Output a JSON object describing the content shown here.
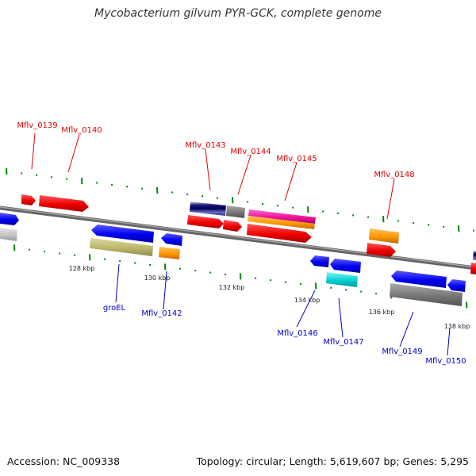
{
  "title": "Mycobacterium gilvum PYR-GCK, complete genome",
  "footer": {
    "accession": "Accession: NC_009338",
    "topology": "Topology: circular; Length: 5,619,607 bp; Genes: 5,295"
  },
  "colors": {
    "top_label": "#dd0000",
    "bottom_label": "#0000cc",
    "tick": "#008800",
    "backbone": "#777777"
  },
  "scale_labels": [
    "128 kbp",
    "130 kbp",
    "132 kbp",
    "134 kbp",
    "136 kbp",
    "138 kbp"
  ],
  "top_labels": [
    "Mflv_0139",
    "Mflv_0140",
    "Mflv_0143",
    "Mflv_0144",
    "Mflv_0145",
    "Mflv_0148"
  ],
  "bottom_labels": [
    "groEL",
    "Mflv_0142",
    "Mflv_0146",
    "Mflv_0147",
    "Mflv_0149",
    "Mflv_0150"
  ]
}
